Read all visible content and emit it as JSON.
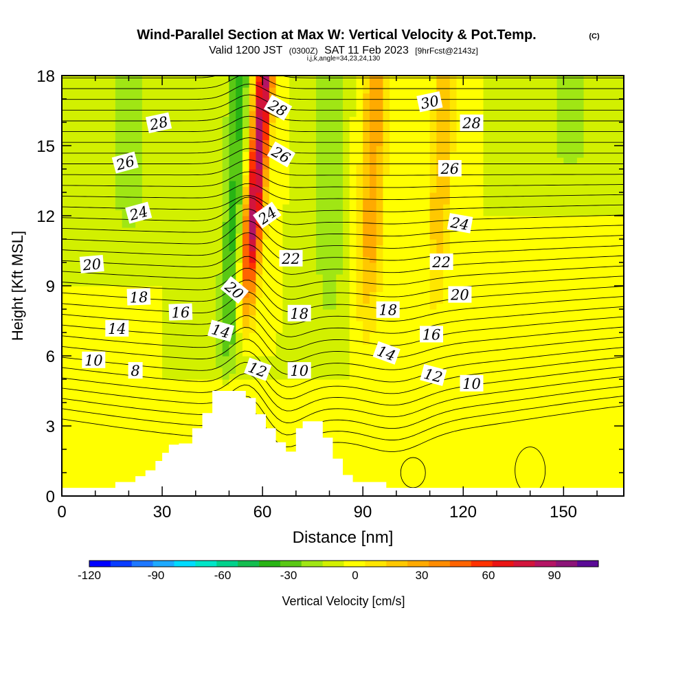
{
  "chart_data": {
    "type": "heatmap",
    "title": "Wind-Parallel Section at Max W: Vertical Velocity & Pot.Temp.",
    "title_mark": "(C)",
    "subtitle_parts": [
      "Valid 1200 JST",
      "(0300Z)",
      "SAT 11 Feb 2023",
      "[9hrFcst@2143z]"
    ],
    "subtitle2": "i,j,k,angle=34,23,24,130",
    "xlabel": "Distance [nm]",
    "ylabel": "Height [Kft MSL]",
    "xlim": [
      0,
      168
    ],
    "ylim": [
      0,
      18
    ],
    "x_ticks": [
      "0",
      "30",
      "60",
      "90",
      "120",
      "150"
    ],
    "y_ticks": [
      "0",
      "3",
      "6",
      "9",
      "12",
      "15",
      "18"
    ],
    "colorbar": {
      "label": "Vertical Velocity [cm/s]",
      "ticks": [
        "-120",
        "-90",
        "-60",
        "-30",
        "0",
        "30",
        "60",
        "90"
      ],
      "colors": [
        "#0000ff",
        "#0a3cff",
        "#1e78ff",
        "#1eaaff",
        "#00dcff",
        "#00e6c8",
        "#00d28c",
        "#14be50",
        "#28b414",
        "#5ac814",
        "#a0e614",
        "#d2f000",
        "#ffff00",
        "#ffe600",
        "#ffc800",
        "#ffaa00",
        "#ff8c00",
        "#ff6400",
        "#ff3200",
        "#eb1414",
        "#d2143c",
        "#b41464",
        "#8c1478",
        "#5a0a96"
      ]
    },
    "terrain": [
      [
        0,
        0.35
      ],
      [
        16,
        0.35
      ],
      [
        16,
        0.6
      ],
      [
        19,
        0.6
      ],
      [
        19,
        0.6
      ],
      [
        22,
        0.6
      ],
      [
        22,
        0.85
      ],
      [
        25,
        0.85
      ],
      [
        25,
        1.1
      ],
      [
        28,
        1.1
      ],
      [
        28,
        1.5
      ],
      [
        30,
        1.5
      ],
      [
        30,
        1.85
      ],
      [
        32,
        1.85
      ],
      [
        32,
        2.2
      ],
      [
        35,
        2.2
      ],
      [
        35,
        2.25
      ],
      [
        39,
        2.25
      ],
      [
        39,
        2.9
      ],
      [
        42,
        2.9
      ],
      [
        42,
        3.55
      ],
      [
        45,
        3.55
      ],
      [
        45,
        4.5
      ],
      [
        55,
        4.5
      ],
      [
        55,
        4.2
      ],
      [
        58,
        4.2
      ],
      [
        58,
        3.5
      ],
      [
        61,
        3.5
      ],
      [
        61,
        2.9
      ],
      [
        64,
        2.9
      ],
      [
        64,
        2.3
      ],
      [
        67,
        2.3
      ],
      [
        67,
        1.9
      ],
      [
        70,
        1.9
      ],
      [
        70,
        2.9
      ],
      [
        72,
        2.9
      ],
      [
        72,
        3.2
      ],
      [
        78,
        3.2
      ],
      [
        78,
        2.5
      ],
      [
        81,
        2.5
      ],
      [
        81,
        1.6
      ],
      [
        84,
        1.6
      ],
      [
        84,
        0.9
      ],
      [
        87,
        0.9
      ],
      [
        87,
        0.6
      ],
      [
        97,
        0.6
      ],
      [
        97,
        0.35
      ],
      [
        168,
        0.35
      ]
    ],
    "contour_labels": [
      {
        "text": "28",
        "x": 29,
        "y": 15.95,
        "angle": -12
      },
      {
        "text": "26",
        "x": 19,
        "y": 14.25,
        "angle": -15
      },
      {
        "text": "24",
        "x": 23,
        "y": 12.1,
        "angle": -15
      },
      {
        "text": "20",
        "x": 9,
        "y": 9.9,
        "angle": -5
      },
      {
        "text": "18",
        "x": 23,
        "y": 8.5,
        "angle": -2
      },
      {
        "text": "16",
        "x": 35.5,
        "y": 7.85,
        "angle": -2
      },
      {
        "text": "14",
        "x": 16.5,
        "y": 7.15,
        "angle": 0
      },
      {
        "text": "10",
        "x": 9.5,
        "y": 5.8,
        "angle": 0
      },
      {
        "text": "8",
        "x": 22,
        "y": 5.35,
        "angle": 0
      },
      {
        "text": "28",
        "x": 64.5,
        "y": 16.6,
        "angle": 30
      },
      {
        "text": "26",
        "x": 65.5,
        "y": 14.6,
        "angle": 30
      },
      {
        "text": "24",
        "x": 61.5,
        "y": 12.0,
        "angle": -35
      },
      {
        "text": "22",
        "x": 68.5,
        "y": 10.15,
        "angle": 0
      },
      {
        "text": "20",
        "x": 51.5,
        "y": 8.8,
        "angle": 40
      },
      {
        "text": "14",
        "x": 47.5,
        "y": 7.05,
        "angle": 15
      },
      {
        "text": "12",
        "x": 58.5,
        "y": 5.4,
        "angle": 20
      },
      {
        "text": "18",
        "x": 71,
        "y": 7.8,
        "angle": 0
      },
      {
        "text": "10",
        "x": 71,
        "y": 5.35,
        "angle": 0
      },
      {
        "text": "30",
        "x": 110,
        "y": 16.85,
        "angle": -12
      },
      {
        "text": "28",
        "x": 122.5,
        "y": 15.95,
        "angle": 0
      },
      {
        "text": "26",
        "x": 116,
        "y": 14.0,
        "angle": 0
      },
      {
        "text": "24",
        "x": 119,
        "y": 11.65,
        "angle": 10
      },
      {
        "text": "22",
        "x": 113.5,
        "y": 10.0,
        "angle": 0
      },
      {
        "text": "20",
        "x": 119,
        "y": 8.6,
        "angle": 0
      },
      {
        "text": "18",
        "x": 97.5,
        "y": 7.95,
        "angle": 0
      },
      {
        "text": "16",
        "x": 110.5,
        "y": 6.9,
        "angle": 0
      },
      {
        "text": "14",
        "x": 97,
        "y": 6.1,
        "angle": 20
      },
      {
        "text": "12",
        "x": 111,
        "y": 5.15,
        "angle": 15
      },
      {
        "text": "10",
        "x": 122.5,
        "y": 4.8,
        "angle": 0
      }
    ]
  }
}
